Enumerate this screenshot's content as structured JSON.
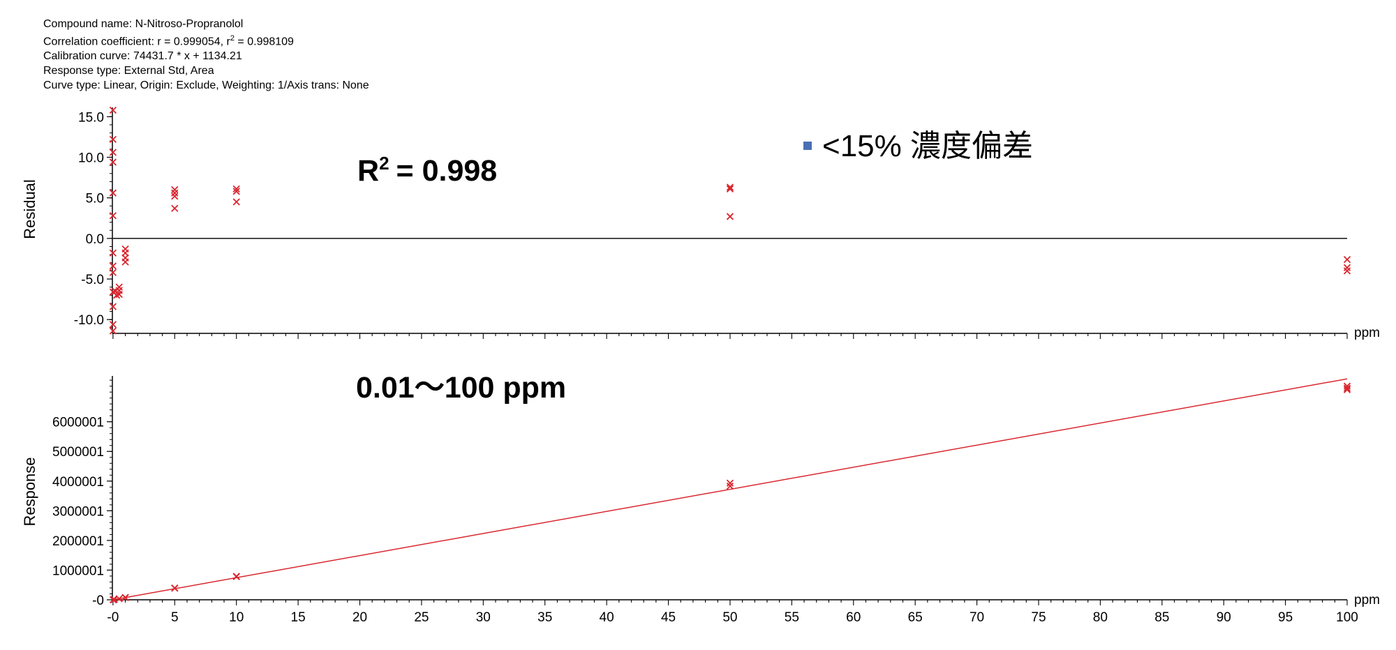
{
  "info": {
    "compound": "Compound name: N-Nitroso-Propranolol",
    "corr_prefix": "Correlation coefficient: r = 0.999054, r",
    "corr_sup": "2",
    "corr_suffix": " = 0.998109",
    "calibration": "Calibration curve: 74431.7 * x + 1134.21",
    "response_type": "Response type: External Std, Area",
    "curve_type": "Curve type: Linear, Origin: Exclude, Weighting: 1/Axis trans: None"
  },
  "annotations": {
    "r2_base": "R",
    "r2_sup": "2",
    "r2_value": "= 0.998",
    "range": "0.01～100 ppm",
    "legend_label": "<15% 濃度偏差",
    "legend_color": "#4a6fb5"
  },
  "chart_data": [
    {
      "type": "scatter",
      "title": "",
      "ylabel": "Residual",
      "xunit": "ppm",
      "xlim": [
        -0.05,
        100
      ],
      "ylim": [
        -11.7,
        15.8
      ],
      "yticks": [
        15.0,
        10.0,
        5.0,
        0.0,
        -5.0,
        -10.0
      ],
      "ytick_labels": [
        "15.0",
        "10.0",
        "5.0",
        "0.0",
        "-5.0",
        "-10.0"
      ],
      "zero_line": true,
      "marker_color": "#d9262e",
      "points": [
        {
          "x": 0.0,
          "y": 15.8
        },
        {
          "x": 0.0,
          "y": 12.2
        },
        {
          "x": 0.0,
          "y": 10.6
        },
        {
          "x": 0.0,
          "y": 9.4
        },
        {
          "x": 0.0,
          "y": 5.6
        },
        {
          "x": 0.0,
          "y": 2.8
        },
        {
          "x": 0.0,
          "y": -1.8
        },
        {
          "x": 0.0,
          "y": -3.4
        },
        {
          "x": 0.0,
          "y": -4.2
        },
        {
          "x": 0.0,
          "y": -6.6
        },
        {
          "x": 0.0,
          "y": -8.4
        },
        {
          "x": 0.0,
          "y": -10.6
        },
        {
          "x": 0.0,
          "y": -11.4
        },
        {
          "x": 0.5,
          "y": -6.0
        },
        {
          "x": 0.5,
          "y": -6.4
        },
        {
          "x": 0.5,
          "y": -6.9
        },
        {
          "x": 0.2,
          "y": -6.5
        },
        {
          "x": 0.3,
          "y": -7.0
        },
        {
          "x": 1.0,
          "y": -1.3
        },
        {
          "x": 1.0,
          "y": -1.8
        },
        {
          "x": 1.0,
          "y": -2.4
        },
        {
          "x": 1.0,
          "y": -2.9
        },
        {
          "x": 5.0,
          "y": 6.0
        },
        {
          "x": 5.0,
          "y": 5.6
        },
        {
          "x": 5.0,
          "y": 5.2
        },
        {
          "x": 5.0,
          "y": 3.7
        },
        {
          "x": 10.0,
          "y": 6.1
        },
        {
          "x": 10.0,
          "y": 5.8
        },
        {
          "x": 10.0,
          "y": 4.5
        },
        {
          "x": 50.0,
          "y": 6.3
        },
        {
          "x": 50.0,
          "y": 6.1
        },
        {
          "x": 50.0,
          "y": 2.7
        },
        {
          "x": 100.0,
          "y": -2.6
        },
        {
          "x": 100.0,
          "y": -3.6
        },
        {
          "x": 100.0,
          "y": -4.0
        }
      ]
    },
    {
      "type": "scatter",
      "title": "",
      "ylabel": "Response",
      "xunit": "ppm",
      "xlim": [
        -0.05,
        100
      ],
      "ylim": [
        -1,
        7450000
      ],
      "yticks": [
        -1,
        1000001,
        2000001,
        3000001,
        4000001,
        5000001,
        6000001
      ],
      "ytick_labels": [
        "-0",
        "1000001",
        "2000001",
        "3000001",
        "4000001",
        "5000001",
        "6000001"
      ],
      "xticks": [
        0,
        5,
        10,
        15,
        20,
        25,
        30,
        35,
        40,
        45,
        50,
        55,
        60,
        65,
        70,
        75,
        80,
        85,
        90,
        95,
        100
      ],
      "xtick_labels": [
        "-0",
        "5",
        "10",
        "15",
        "20",
        "25",
        "30",
        "35",
        "40",
        "45",
        "50",
        "55",
        "60",
        "65",
        "70",
        "75",
        "80",
        "85",
        "90",
        "95",
        "100"
      ],
      "line": {
        "slope": 74431.7,
        "intercept": 1134.21,
        "color": "#d9262e"
      },
      "marker_color": "#d9262e",
      "points": [
        {
          "x": 0.01,
          "y": 1000
        },
        {
          "x": 0.05,
          "y": 4800
        },
        {
          "x": 0.1,
          "y": 8500
        },
        {
          "x": 0.5,
          "y": 36000
        },
        {
          "x": 1.0,
          "y": 73000
        },
        {
          "x": 1.0,
          "y": 78000
        },
        {
          "x": 5.0,
          "y": 390000
        },
        {
          "x": 5.0,
          "y": 395000
        },
        {
          "x": 10.0,
          "y": 780000
        },
        {
          "x": 10.0,
          "y": 790000
        },
        {
          "x": 50.0,
          "y": 3930000
        },
        {
          "x": 50.0,
          "y": 3830000
        },
        {
          "x": 100.0,
          "y": 7200000
        },
        {
          "x": 100.0,
          "y": 7130000
        },
        {
          "x": 100.0,
          "y": 7080000
        }
      ]
    }
  ]
}
